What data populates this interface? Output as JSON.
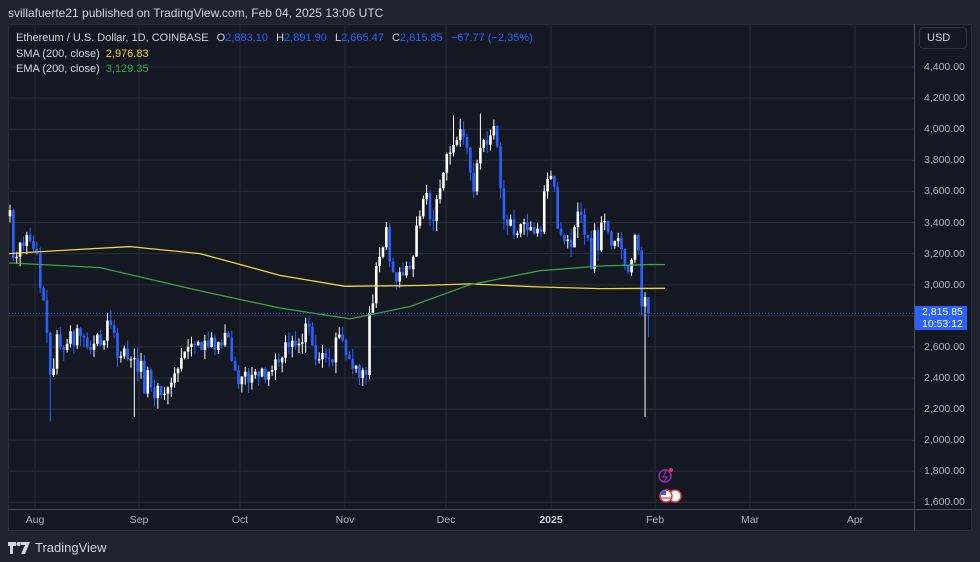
{
  "header": {
    "published": "svillafuerte21 published on TradingView.com, Feb 04, 2025 13:06 UTC"
  },
  "legend": {
    "symbol": "Ethereum / U.S. Dollar, 1D, COINBASE",
    "o_label": "O",
    "o": "2,883.10",
    "h_label": "H",
    "h": "2,891.90",
    "l_label": "L",
    "l": "2,665.47",
    "c_label": "C",
    "c": "2,815.85",
    "change": "−67.77 (−2.35%)",
    "sma_label": "SMA (200, close)",
    "sma_value": "2,976.83",
    "ema_label": "EMA (200, close)",
    "ema_value": "3,129.35"
  },
  "price_axis": {
    "currency": "USD",
    "ticks": [
      "4,400.00",
      "4,200.00",
      "4,000.00",
      "3,800.00",
      "3,600.00",
      "3,400.00",
      "3,200.00",
      "3,000.00",
      "2,600.00",
      "2,400.00",
      "2,200.00",
      "2,000.00",
      "1,800.00",
      "1,600.00"
    ],
    "last_price": "2,815.85",
    "countdown": "10:53:12"
  },
  "time_axis": {
    "ticks": [
      "Aug",
      "Sep",
      "Oct",
      "Nov",
      "Dec",
      "2025",
      "Feb",
      "Mar",
      "Apr"
    ]
  },
  "footer": {
    "brand": "TradingView"
  },
  "colors": {
    "up": "#ffffff",
    "down": "#2962ff",
    "sma": "#f0d43a",
    "ema": "#3fa046",
    "background": "#141823",
    "grid": "#2a2e39",
    "last_price": "#2962ff"
  },
  "chart_data": {
    "type": "candlestick",
    "title": "Ethereum / U.S. Dollar, 1D, COINBASE",
    "xlabel": "",
    "ylabel": "USD",
    "ylim": [
      1500,
      4500
    ],
    "grid": true,
    "x_ticks": [
      "Aug",
      "Sep",
      "Oct",
      "Nov",
      "Dec",
      "2025",
      "Feb",
      "Mar",
      "Apr"
    ],
    "y_ticks": [
      1600,
      1800,
      2000,
      2200,
      2400,
      2600,
      2800,
      3000,
      3200,
      3400,
      3600,
      3800,
      4000,
      4200,
      4400
    ],
    "start_date": "2024-07-23",
    "closes": [
      3480,
      3170,
      3180,
      3270,
      3250,
      3320,
      3280,
      3230,
      3200,
      2980,
      2900,
      2690,
      2420,
      2460,
      2680,
      2600,
      2580,
      2620,
      2700,
      2610,
      2720,
      2670,
      2660,
      2600,
      2580,
      2620,
      2680,
      2610,
      2640,
      2770,
      2740,
      2690,
      2530,
      2540,
      2590,
      2520,
      2520,
      2530,
      2440,
      2510,
      2300,
      2450,
      2340,
      2270,
      2350,
      2290,
      2300,
      2340,
      2370,
      2430,
      2460,
      2530,
      2570,
      2600,
      2620,
      2610,
      2630,
      2580,
      2640,
      2600,
      2660,
      2580,
      2630,
      2610,
      2690,
      2660,
      2510,
      2450,
      2360,
      2410,
      2440,
      2370,
      2420,
      2440,
      2410,
      2460,
      2390,
      2440,
      2450,
      2520,
      2500,
      2530,
      2630,
      2600,
      2640,
      2610,
      2620,
      2630,
      2750,
      2730,
      2610,
      2520,
      2520,
      2560,
      2530,
      2520,
      2500,
      2660,
      2680,
      2640,
      2550,
      2520,
      2460,
      2480,
      2400,
      2450,
      2420,
      2820,
      2880,
      3120,
      3180,
      3240,
      3370,
      3150,
      3080,
      3020,
      3080,
      3060,
      3120,
      3100,
      3180,
      3380,
      3440,
      3550,
      3590,
      3420,
      3410,
      3550,
      3620,
      3720,
      3840,
      3850,
      3900,
      3930,
      4000,
      3950,
      3880,
      3720,
      3600,
      3780,
      3880,
      3930,
      3900,
      3960,
      4020,
      3890,
      3620,
      3420,
      3380,
      3420,
      3320,
      3330,
      3390,
      3400,
      3350,
      3370,
      3330,
      3360,
      3340,
      3600,
      3680,
      3700,
      3630,
      3360,
      3320,
      3280,
      3290,
      3240,
      3370,
      3470,
      3450,
      3320,
      3300,
      3100,
      3350,
      3220,
      3400,
      3410,
      3340,
      3250,
      3280,
      3300,
      3230,
      3120,
      3080,
      3160,
      3320,
      3220,
      2860,
      2920,
      2815.85
    ],
    "sma_200_last": 2976.83,
    "ema_200_last": 3129.35,
    "last": {
      "open": 2883.1,
      "high": 2891.9,
      "low": 2665.47,
      "close": 2815.85,
      "change": -67.77,
      "change_pct": -2.35
    }
  }
}
